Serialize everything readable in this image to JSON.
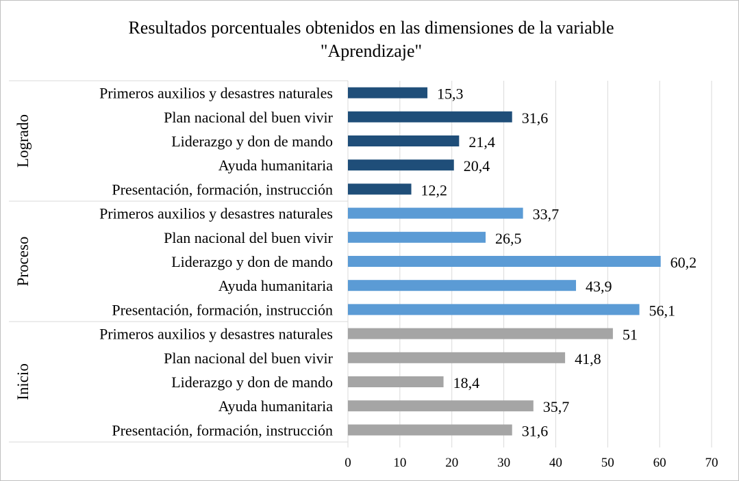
{
  "chart_data": {
    "type": "bar",
    "orientation": "horizontal",
    "title_lines": [
      "Resultados porcentuales obtenidos en las dimensiones de la variable",
      "\"Aprendizaje\""
    ],
    "xlim": [
      0,
      70
    ],
    "xticks": [
      0,
      10,
      20,
      30,
      40,
      50,
      60,
      70
    ],
    "grid": true,
    "groups": [
      {
        "name": "Logrado",
        "color": "#1f4e79",
        "categories": [
          "Primeros auxilios y desastres naturales",
          "Plan nacional del buen vivir",
          "Liderazgo y don de mando",
          "Ayuda humanitaria",
          "Presentación, formación, instrucción"
        ],
        "values": [
          15.3,
          31.6,
          21.4,
          20.4,
          12.2
        ],
        "labels": [
          "15,3",
          "31,6",
          "21,4",
          "20,4",
          "12,2"
        ]
      },
      {
        "name": "Proceso",
        "color": "#5b9bd5",
        "categories": [
          "Primeros auxilios y desastres naturales",
          "Plan nacional del buen vivir",
          "Liderazgo y don de mando",
          "Ayuda humanitaria",
          "Presentación, formación, instrucción"
        ],
        "values": [
          33.7,
          26.5,
          60.2,
          43.9,
          56.1
        ],
        "labels": [
          "33,7",
          "26,5",
          "60,2",
          "43,9",
          "56,1"
        ]
      },
      {
        "name": "Inicio",
        "color": "#a5a5a5",
        "categories": [
          "Primeros auxilios y desastres naturales",
          "Plan nacional del buen vivir",
          "Liderazgo y don de mando",
          "Ayuda humanitaria",
          "Presentación, formación, instrucción"
        ],
        "values": [
          51,
          41.8,
          18.4,
          35.7,
          31.6
        ],
        "labels": [
          "51",
          "41,8",
          "18,4",
          "35,7",
          "31,6"
        ]
      }
    ]
  }
}
